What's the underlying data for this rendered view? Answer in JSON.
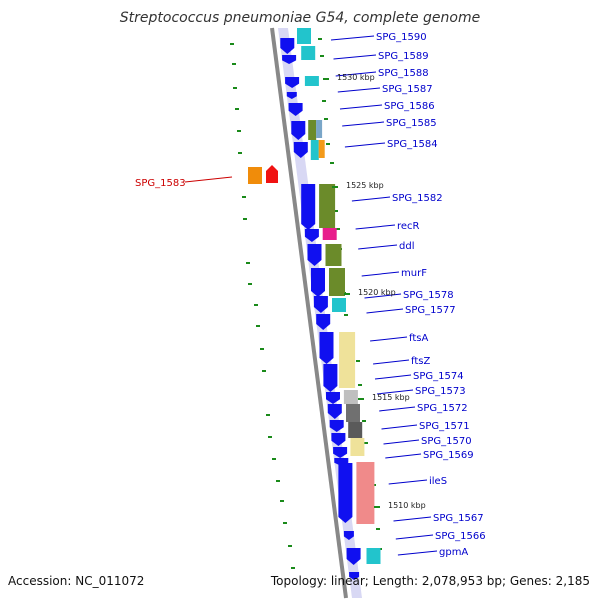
{
  "title": "Streptococcus pneumoniae G54, complete genome",
  "footer": {
    "accession": "Accession: NC_011072",
    "topology": "Topology: linear; Length: 2,078,953 bp; Genes: 2,185"
  },
  "colors": {
    "gene": "#1010f0",
    "label": "#0000cc",
    "highlight": "#cc0000",
    "tick": "#1a8a1a",
    "backbone": "#888888"
  },
  "scale_labels": [
    "1530 kbp",
    "1525 kbp",
    "1520 kbp",
    "1515 kbp",
    "1510 kbp"
  ],
  "genes": [
    {
      "name": "SPG_1590"
    },
    {
      "name": "SPG_1589"
    },
    {
      "name": "SPG_1588"
    },
    {
      "name": "SPG_1587"
    },
    {
      "name": "SPG_1586"
    },
    {
      "name": "SPG_1585"
    },
    {
      "name": "SPG_1584"
    },
    {
      "name": "SPG_1583",
      "highlight": true
    },
    {
      "name": "SPG_1582"
    },
    {
      "name": "recR"
    },
    {
      "name": "ddl"
    },
    {
      "name": "murF"
    },
    {
      "name": "SPG_1578"
    },
    {
      "name": "SPG_1577"
    },
    {
      "name": "ftsA"
    },
    {
      "name": "ftsZ"
    },
    {
      "name": "SPG_1574"
    },
    {
      "name": "SPG_1573"
    },
    {
      "name": "SPG_1572"
    },
    {
      "name": "SPG_1571"
    },
    {
      "name": "SPG_1570"
    },
    {
      "name": "SPG_1569"
    },
    {
      "name": "ileS"
    },
    {
      "name": "SPG_1567"
    },
    {
      "name": "SPG_1566"
    },
    {
      "name": "gpmA"
    }
  ]
}
